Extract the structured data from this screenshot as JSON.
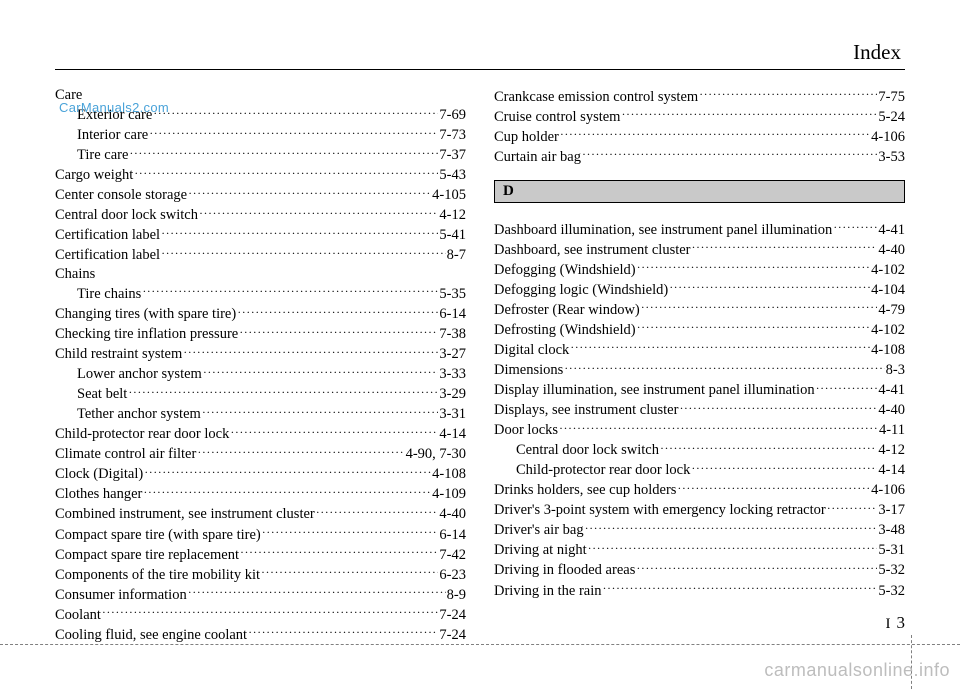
{
  "header": {
    "title": "Index"
  },
  "watermark": "CarManuals2.com",
  "bottom_watermark": "carmanualsonline.info",
  "footer": {
    "section": "I",
    "page": "3"
  },
  "left": {
    "entries": [
      {
        "label": "Care",
        "page": "",
        "indent": 0,
        "heading": true
      },
      {
        "label": "Exterior care",
        "page": "7-69",
        "indent": 1
      },
      {
        "label": "Interior care",
        "page": "7-73",
        "indent": 1
      },
      {
        "label": "Tire care",
        "page": "7-37",
        "indent": 1
      },
      {
        "label": "Cargo weight",
        "page": "5-43",
        "indent": 0
      },
      {
        "label": "Center console storage",
        "page": "4-105",
        "indent": 0
      },
      {
        "label": "Central door lock switch",
        "page": "4-12",
        "indent": 0
      },
      {
        "label": "Certification label",
        "page": "5-41",
        "indent": 0
      },
      {
        "label": "Certification label",
        "page": "8-7",
        "indent": 0
      },
      {
        "label": "Chains",
        "page": "",
        "indent": 0,
        "heading": true
      },
      {
        "label": "Tire chains",
        "page": "5-35",
        "indent": 1
      },
      {
        "label": "Changing tires (with spare tire)",
        "page": "6-14",
        "indent": 0
      },
      {
        "label": "Checking tire inflation pressure",
        "page": "7-38",
        "indent": 0
      },
      {
        "label": "Child restraint system",
        "page": "3-27",
        "indent": 0
      },
      {
        "label": "Lower anchor system",
        "page": "3-33",
        "indent": 1
      },
      {
        "label": "Seat belt",
        "page": "3-29",
        "indent": 1
      },
      {
        "label": "Tether anchor system",
        "page": "3-31",
        "indent": 1
      },
      {
        "label": "Child-protector rear door lock",
        "page": "4-14",
        "indent": 0
      },
      {
        "label": "Climate control air filter",
        "page": "4-90, 7-30",
        "indent": 0
      },
      {
        "label": "Clock (Digital)",
        "page": "4-108",
        "indent": 0
      },
      {
        "label": "Clothes hanger",
        "page": "4-109",
        "indent": 0
      },
      {
        "label": "Combined instrument, see instrument cluster",
        "page": "4-40",
        "indent": 0
      },
      {
        "label": "Compact spare tire (with spare tire)",
        "page": "6-14",
        "indent": 0
      },
      {
        "label": "Compact spare tire replacement",
        "page": "7-42",
        "indent": 0
      },
      {
        "label": "Components of the tire mobility kit",
        "page": "6-23",
        "indent": 0
      },
      {
        "label": "Consumer information",
        "page": "8-9",
        "indent": 0
      },
      {
        "label": "Coolant",
        "page": "7-24",
        "indent": 0
      },
      {
        "label": "Cooling fluid, see engine coolant",
        "page": "7-24",
        "indent": 0
      }
    ]
  },
  "right": {
    "top_entries": [
      {
        "label": "Crankcase emission control system",
        "page": "7-75",
        "indent": 0
      },
      {
        "label": "Cruise control system",
        "page": "5-24",
        "indent": 0
      },
      {
        "label": "Cup holder",
        "page": "4-106",
        "indent": 0
      },
      {
        "label": "Curtain air bag",
        "page": "3-53",
        "indent": 0
      }
    ],
    "section_letter": "D",
    "d_entries": [
      {
        "label": "Dashboard illumination, see instrument panel illumination",
        "page": "4-41",
        "indent": 0
      },
      {
        "label": "Dashboard, see instrument cluster",
        "page": "4-40",
        "indent": 0
      },
      {
        "label": "Defogging (Windshield)",
        "page": "4-102",
        "indent": 0
      },
      {
        "label": "Defogging logic (Windshield)",
        "page": "4-104",
        "indent": 0
      },
      {
        "label": "Defroster (Rear window)",
        "page": "4-79",
        "indent": 0
      },
      {
        "label": "Defrosting (Windshield)",
        "page": "4-102",
        "indent": 0
      },
      {
        "label": "Digital clock",
        "page": "4-108",
        "indent": 0
      },
      {
        "label": "Dimensions",
        "page": "8-3",
        "indent": 0
      },
      {
        "label": "Display illumination, see instrument panel illumination",
        "page": "4-41",
        "indent": 0
      },
      {
        "label": "Displays, see instrument cluster",
        "page": "4-40",
        "indent": 0
      },
      {
        "label": "Door locks",
        "page": "4-11",
        "indent": 0
      },
      {
        "label": "Central door lock switch",
        "page": "4-12",
        "indent": 1
      },
      {
        "label": "Child-protector rear door lock",
        "page": "4-14",
        "indent": 1
      },
      {
        "label": "Drinks holders, see cup holders",
        "page": "4-106",
        "indent": 0
      },
      {
        "label": "Driver's 3-point system with emergency locking retractor",
        "page": "3-17",
        "indent": 0
      },
      {
        "label": "Driver's air bag",
        "page": "3-48",
        "indent": 0
      },
      {
        "label": "Driving at night",
        "page": "5-31",
        "indent": 0
      },
      {
        "label": "Driving in flooded areas",
        "page": "5-32",
        "indent": 0
      },
      {
        "label": "Driving in the rain",
        "page": "5-32",
        "indent": 0
      }
    ]
  }
}
